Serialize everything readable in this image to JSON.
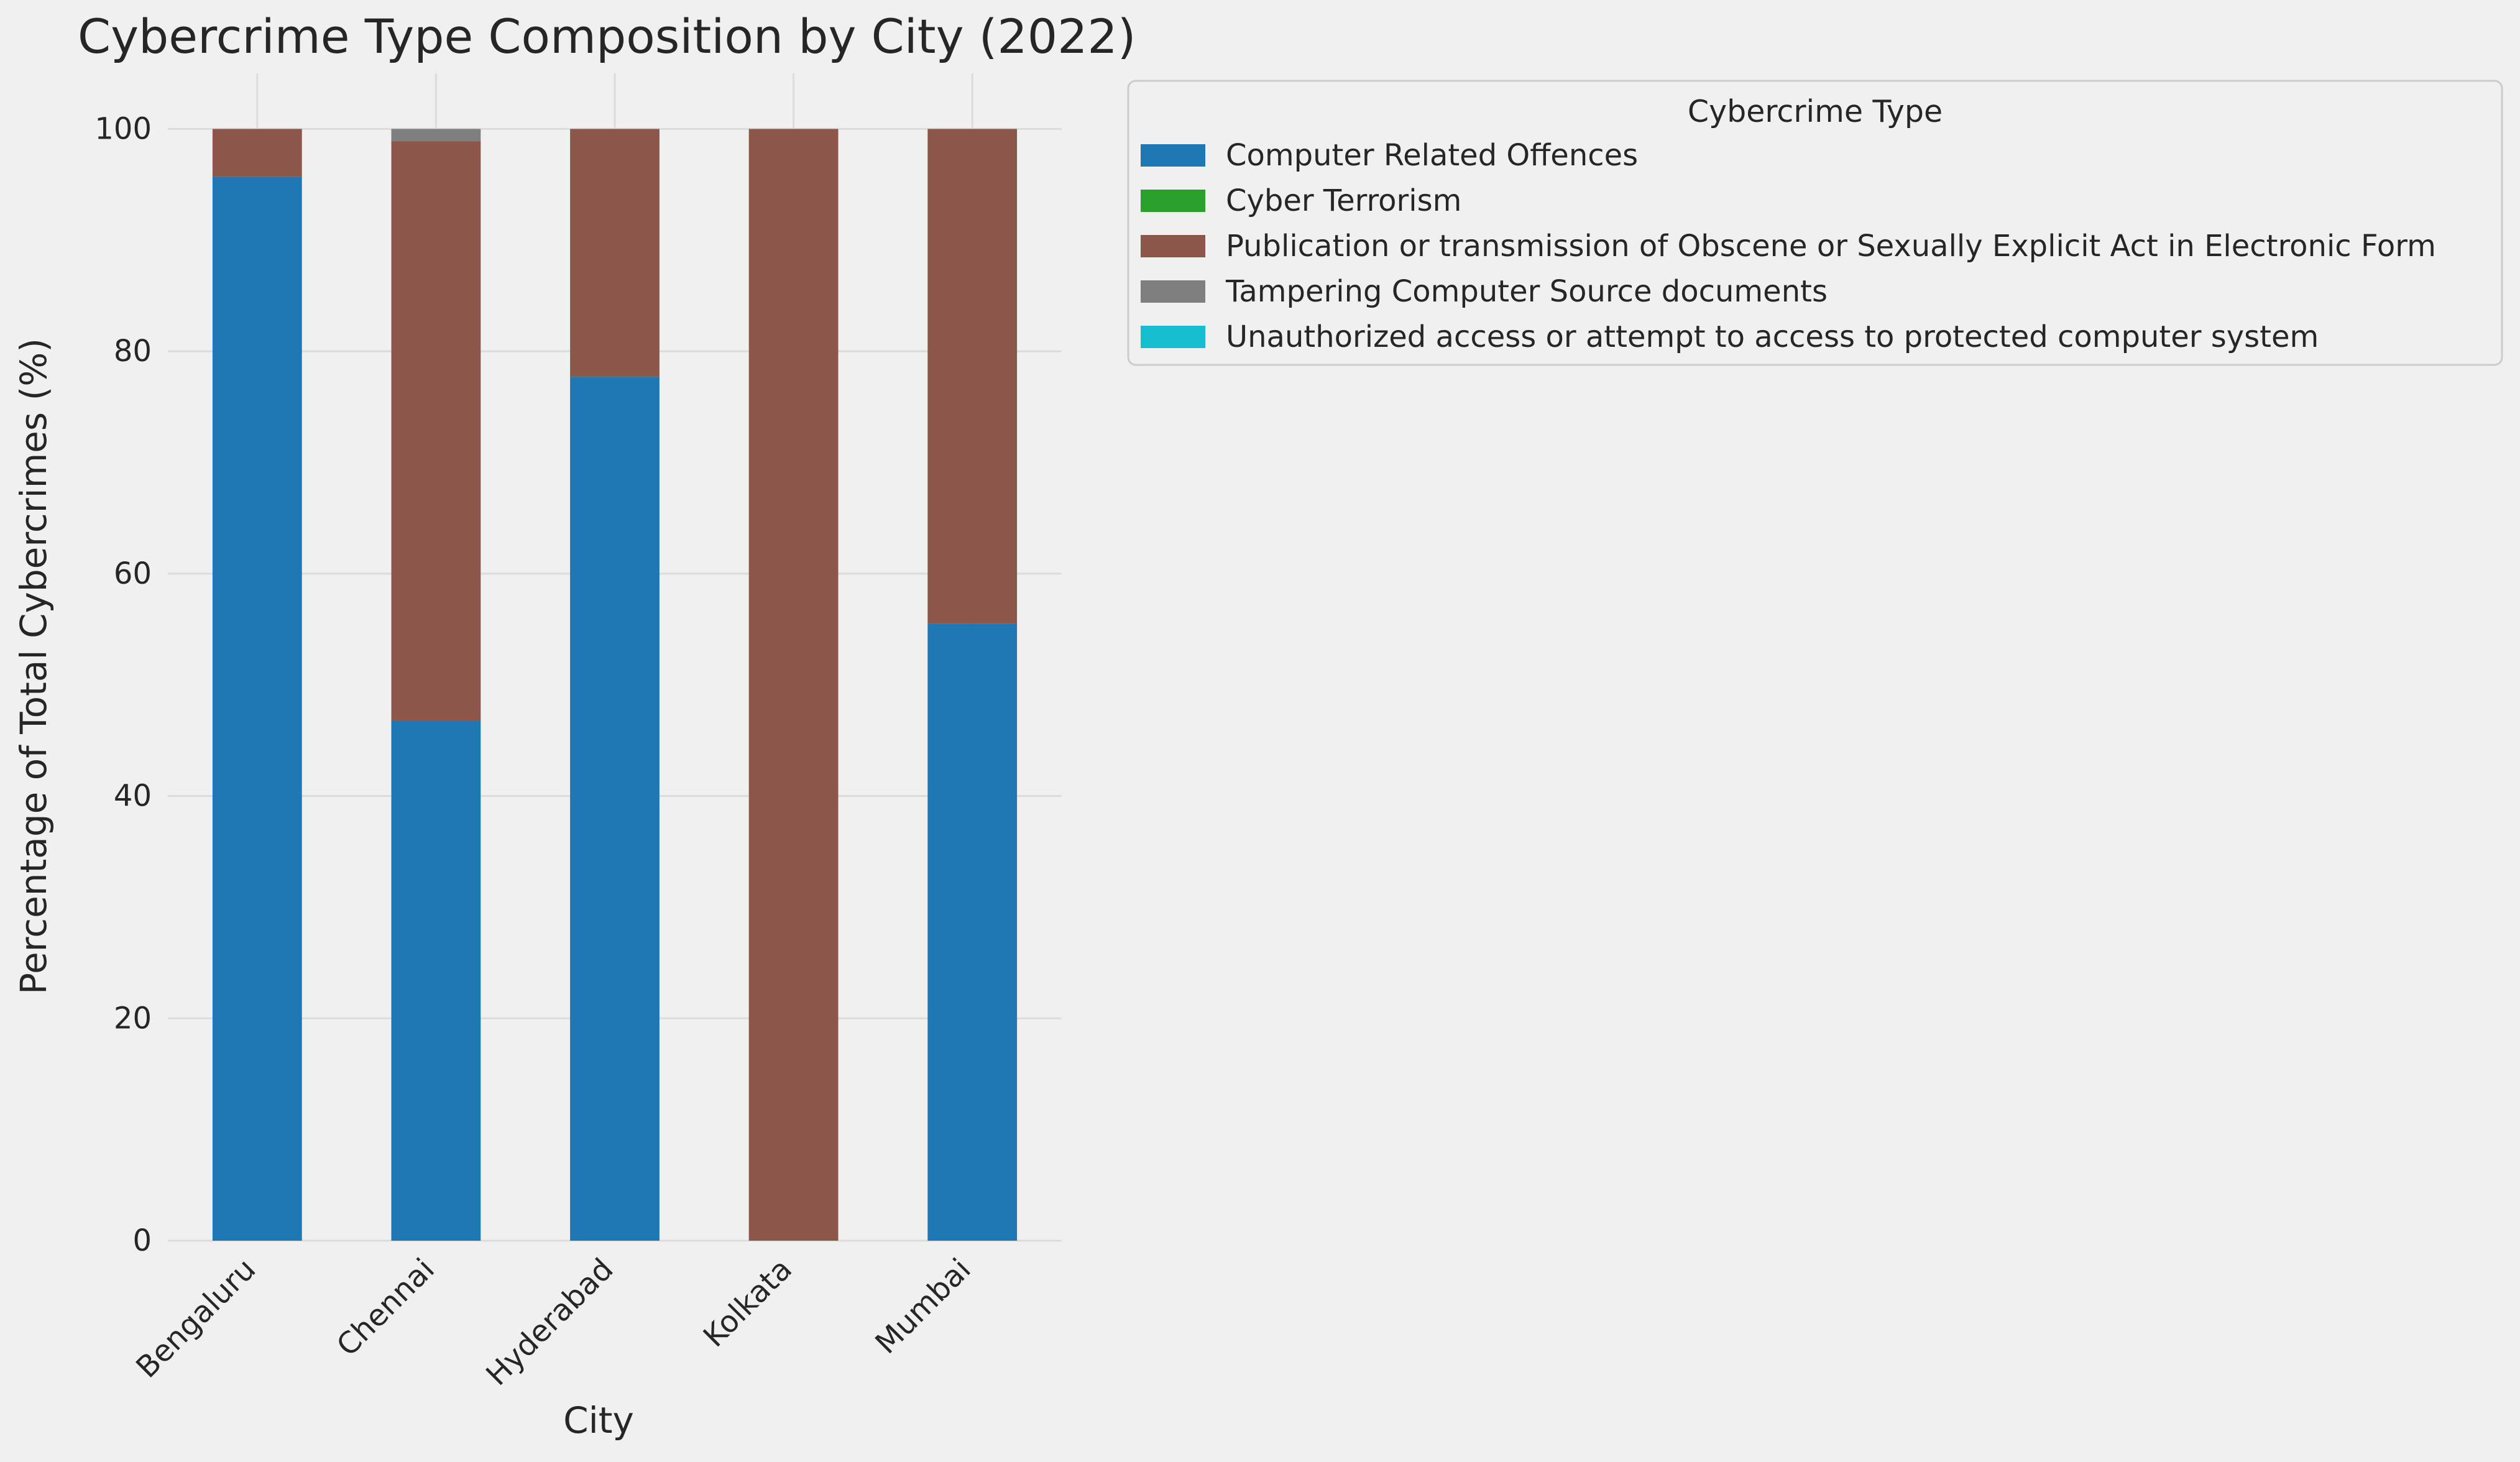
{
  "chart_data": {
    "type": "bar",
    "stacked": true,
    "title": "Cybercrime Type Composition by City (2022)",
    "xlabel": "City",
    "ylabel": "Percentage of Total Cybercrimes (%)",
    "categories": [
      "Bengaluru",
      "Chennai",
      "Hyderabad",
      "Kolkata",
      "Mumbai"
    ],
    "ylim": [
      0,
      105
    ],
    "yticks": [
      0,
      20,
      40,
      60,
      80,
      100
    ],
    "grid": true,
    "legend": {
      "title": "Cybercrime Type",
      "placement": "outside-right-top"
    },
    "series": [
      {
        "name": "Computer Related Offences",
        "color": "#1f77b4",
        "values": [
          95.7,
          46.8,
          77.7,
          0.0,
          55.5
        ]
      },
      {
        "name": "Cyber Terrorism",
        "color": "#2ca02c",
        "values": [
          0.0,
          0.0,
          0.0,
          0.0,
          0.0
        ]
      },
      {
        "name": "Publication or transmission of Obscene or Sexually Explicit Act in Electronic Form",
        "color": "#8c564b",
        "values": [
          4.3,
          52.1,
          22.3,
          100.0,
          44.5
        ]
      },
      {
        "name": "Tampering Computer Source documents",
        "color": "#7f7f7f",
        "values": [
          0.0,
          1.1,
          0.0,
          0.0,
          0.0
        ]
      },
      {
        "name": "Unauthorized access or attempt to access to protected computer system",
        "color": "#17becf",
        "values": [
          0.0,
          0.0,
          0.0,
          0.0,
          0.0
        ]
      }
    ]
  },
  "colors": {
    "background": "#f0f0f0",
    "grid": "#dcdcdc",
    "text": "#262626",
    "legend_border": "#cccccc"
  }
}
